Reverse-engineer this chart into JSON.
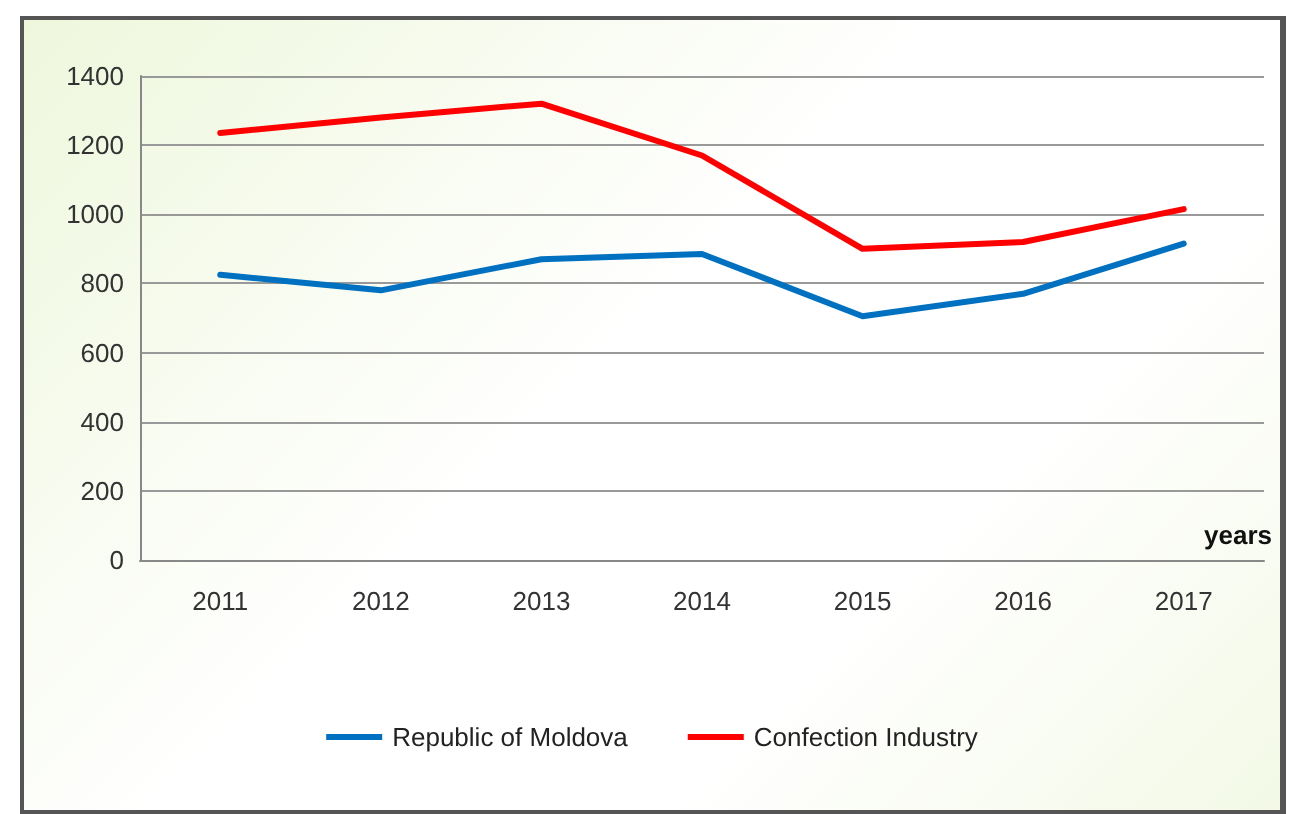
{
  "chart_data": {
    "type": "line",
    "xlabel": "years",
    "categories": [
      "2011",
      "2012",
      "2013",
      "2014",
      "2015",
      "2016",
      "2017"
    ],
    "series": [
      {
        "name": "Republic of Moldova",
        "color": "#0070c0",
        "values": [
          825,
          780,
          870,
          885,
          705,
          770,
          915
        ]
      },
      {
        "name": "Confection Industry",
        "color": "#ff0000",
        "values": [
          1235,
          1280,
          1320,
          1170,
          900,
          920,
          1015
        ]
      }
    ],
    "ylim": [
      0,
      1400
    ],
    "yticks": [
      0,
      200,
      400,
      600,
      800,
      1000,
      1200,
      1400
    ],
    "grid": "y",
    "legend": "bottom",
    "marker": "none",
    "line_style": "solid"
  }
}
